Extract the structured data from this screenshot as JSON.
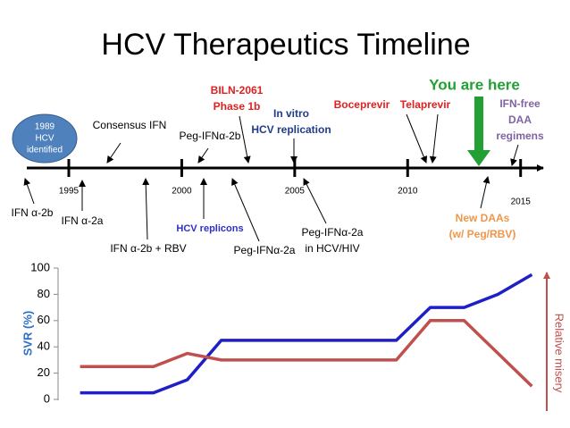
{
  "title": "HCV Therapeutics Timeline",
  "timeline": {
    "years": [
      1995,
      2000,
      2005,
      2010,
      2015
    ],
    "events": [
      {
        "lines": [
          "1989",
          "HCV",
          "identified"
        ]
      },
      {
        "lines": [
          "IFN α-2b"
        ]
      },
      {
        "lines": [
          "IFN α-2a"
        ]
      },
      {
        "lines": [
          "Consensus IFN"
        ]
      },
      {
        "lines": [
          "IFN α-2b + RBV"
        ]
      },
      {
        "lines": [
          "Peg-IFNα-2b"
        ]
      },
      {
        "lines": [
          "HCV replicons"
        ]
      },
      {
        "lines": [
          "Peg-IFNα-2a"
        ]
      },
      {
        "lines": [
          "BILN-2061",
          "Phase 1b"
        ]
      },
      {
        "lines": [
          "In vitro",
          "HCV replication"
        ]
      },
      {
        "lines": [
          "Peg-IFNα-2a",
          "in HCV/HIV"
        ]
      },
      {
        "lines": [
          "Boceprevir"
        ]
      },
      {
        "lines": [
          "Telaprevir"
        ]
      },
      {
        "lines": [
          "You are here"
        ]
      },
      {
        "lines": [
          "IFN-free",
          "DAA",
          "regimens"
        ]
      },
      {
        "lines": [
          "New DAAs",
          "(w/ Peg/RBV)"
        ]
      }
    ]
  },
  "chart_data": {
    "type": "line",
    "ylabel": "SVR (%)",
    "y2label": "Relative misery",
    "x": [
      1995.5,
      1998.75,
      2000.25,
      2001.75,
      2009.5,
      2011,
      2012.5,
      2014,
      2015.5
    ],
    "xlim": [
      1993.3,
      2016
    ],
    "ylim": [
      0,
      100
    ],
    "yticks": [
      0,
      20,
      40,
      60,
      80,
      100
    ],
    "series": [
      {
        "color": "#1f1fc8",
        "values": [
          5,
          5,
          15,
          45,
          45,
          70,
          70,
          80,
          95
        ]
      },
      {
        "color": "#c0504d",
        "values": [
          25,
          25,
          35,
          30,
          30,
          60,
          60,
          35,
          10
        ]
      }
    ]
  }
}
